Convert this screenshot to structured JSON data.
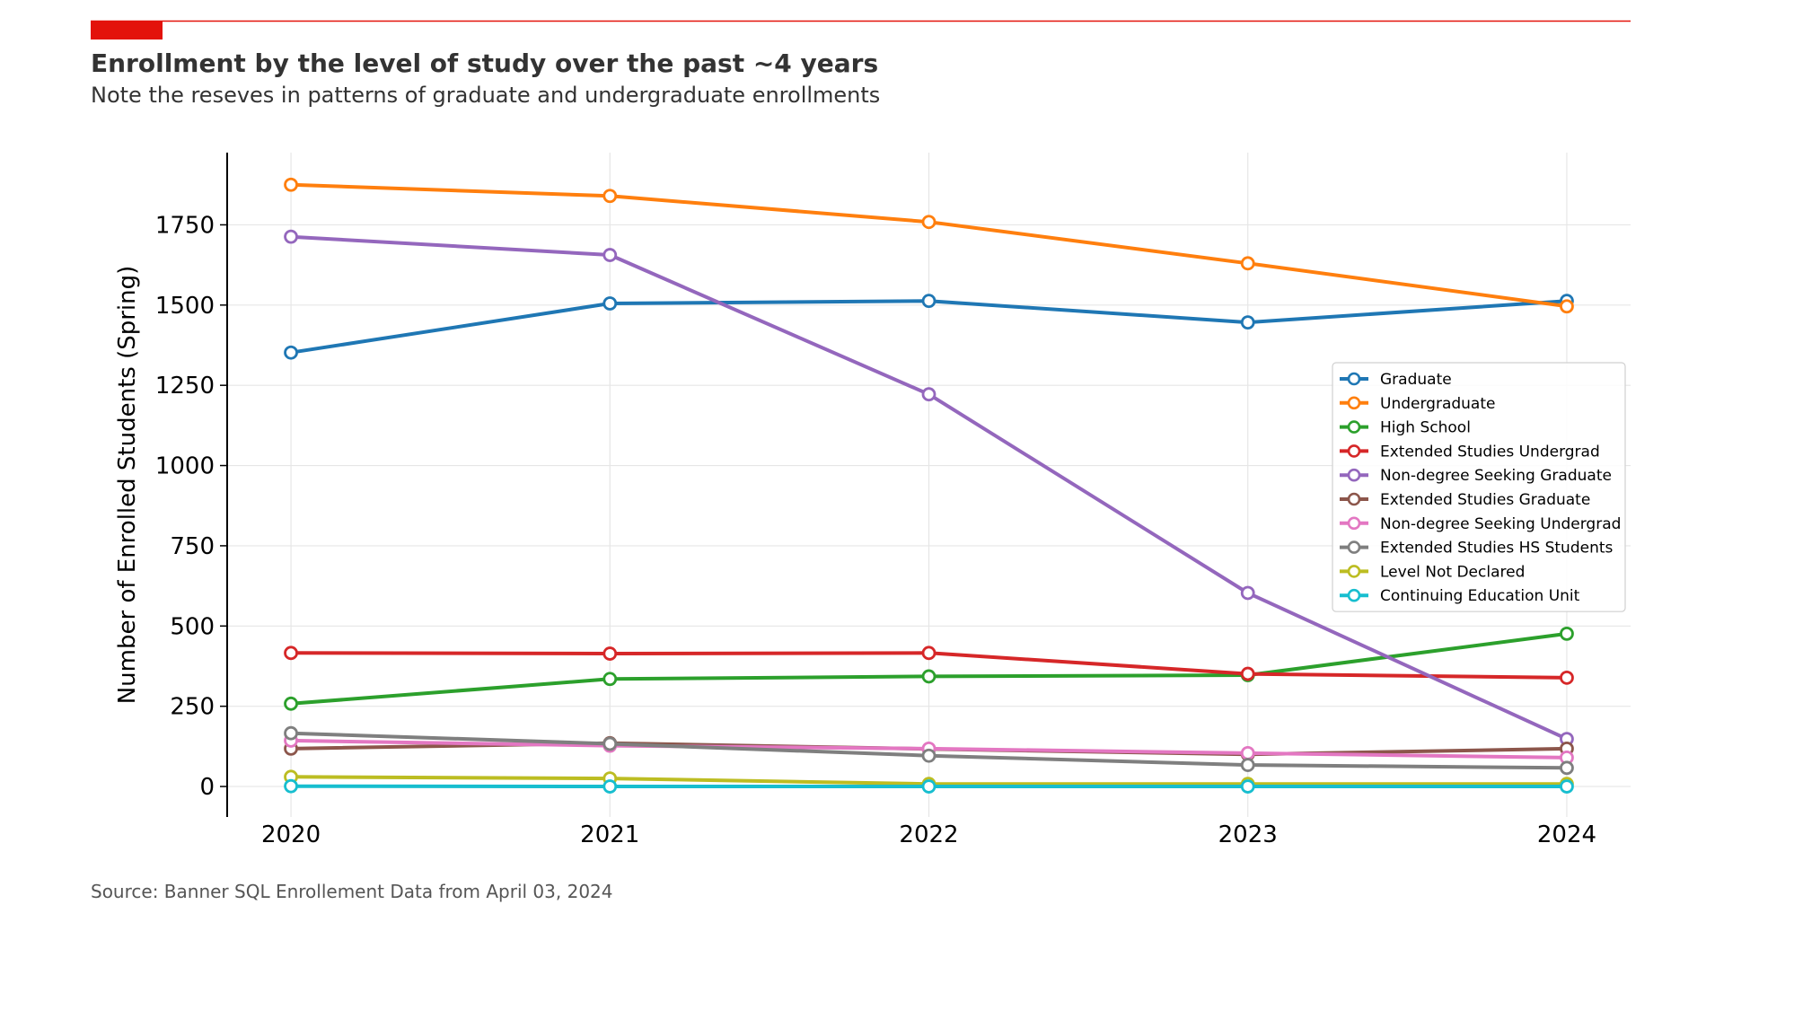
{
  "header": {
    "title": "Enrollment by the level of study over the past ~4 years",
    "subtitle": "Note the reseves in patterns of graduate and undergraduate enrollments",
    "accent_color": "#e3120b"
  },
  "footer": {
    "source": "Source: Banner SQL Enrollement Data from April 03, 2024"
  },
  "chart_data": {
    "type": "line",
    "title": "Enrollment by the level of study over the past ~4 years",
    "subtitle": "Note the reseves in patterns of graduate and undergraduate enrollments",
    "xlabel": "",
    "ylabel": "Number of Enrolled Students (Spring)",
    "x": [
      2020,
      2021,
      2022,
      2023,
      2024
    ],
    "x_tick_labels": [
      "2020",
      "2021",
      "2022",
      "2023",
      "2024"
    ],
    "y_ticks": [
      0,
      250,
      500,
      750,
      1000,
      1250,
      1500,
      1750
    ],
    "xlim": [
      2019.8,
      2024.2
    ],
    "ylim": [
      -95,
      1975
    ],
    "grid": true,
    "legend_position": "center-right",
    "series": [
      {
        "name": "Graduate",
        "color": "#1f77b4",
        "values": [
          1352,
          1505,
          1513,
          1446,
          1513
        ]
      },
      {
        "name": "Undergraduate",
        "color": "#ff7f0e",
        "values": [
          1875,
          1840,
          1759,
          1630,
          1496
        ]
      },
      {
        "name": "High School",
        "color": "#2ca02c",
        "values": [
          258,
          335,
          343,
          347,
          476
        ]
      },
      {
        "name": "Extended Studies Undergrad",
        "color": "#d62728",
        "values": [
          416,
          414,
          416,
          351,
          339
        ]
      },
      {
        "name": "Non-degree Seeking Graduate",
        "color": "#9467bd",
        "values": [
          1713,
          1656,
          1222,
          603,
          148
        ]
      },
      {
        "name": "Extended Studies Graduate",
        "color": "#8c564b",
        "values": [
          118,
          135,
          117,
          100,
          118
        ]
      },
      {
        "name": "Non-degree Seeking Undergrad",
        "color": "#e377c2",
        "values": [
          143,
          127,
          118,
          104,
          90
        ]
      },
      {
        "name": "Extended Studies HS Students",
        "color": "#7f7f7f",
        "values": [
          166,
          133,
          96,
          67,
          58
        ]
      },
      {
        "name": "Level Not Declared",
        "color": "#bcbd22",
        "values": [
          30,
          25,
          8,
          8,
          8
        ]
      },
      {
        "name": "Continuing Education Unit",
        "color": "#17becf",
        "values": [
          1,
          0,
          0,
          0,
          0
        ]
      }
    ]
  }
}
